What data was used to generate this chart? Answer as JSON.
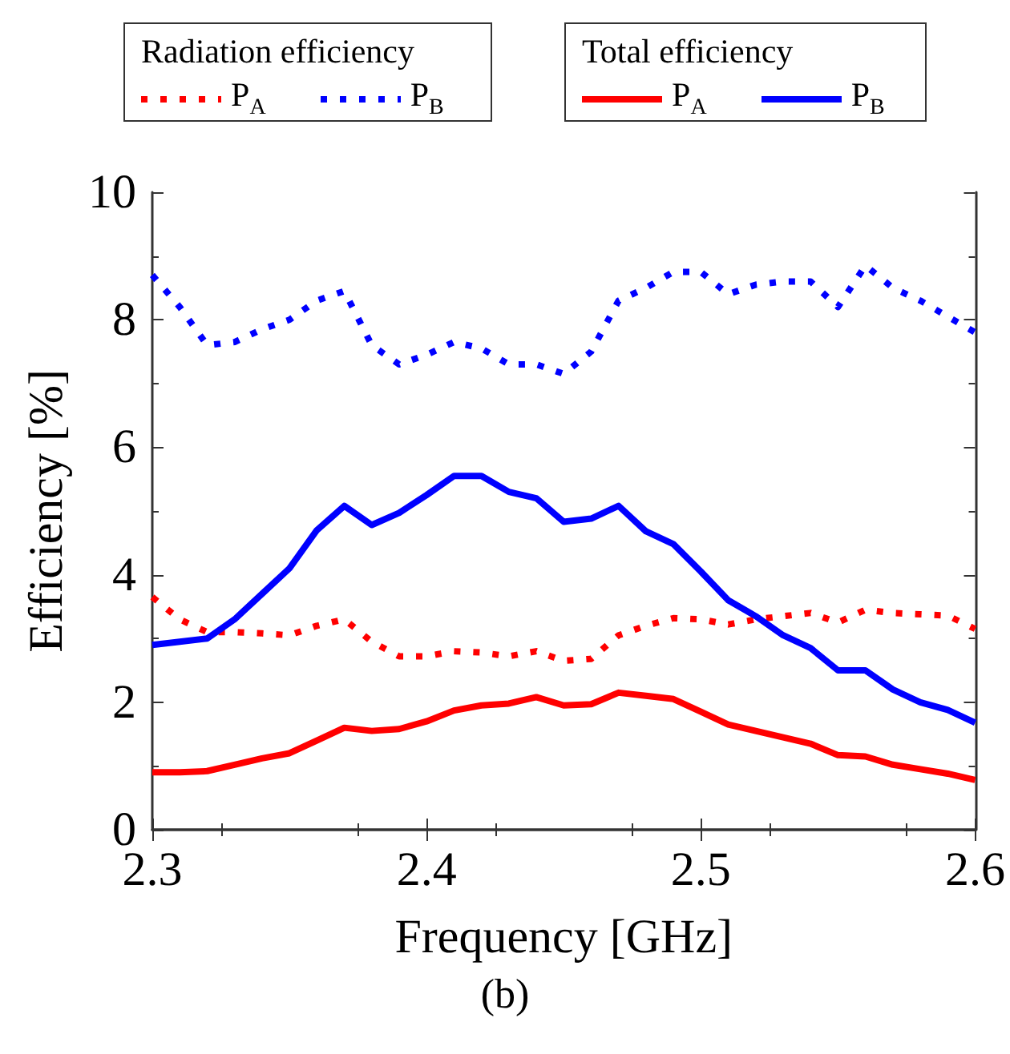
{
  "chart_data": {
    "type": "line",
    "xlabel": "Frequency [GHz]",
    "ylabel": "Efficiency [%]",
    "annotations": [
      "Radiation efficiency",
      "Total efficiency",
      "(b)"
    ],
    "x": [
      2.3,
      2.31,
      2.32,
      2.33,
      2.34,
      2.35,
      2.36,
      2.37,
      2.38,
      2.39,
      2.4,
      2.41,
      2.42,
      2.43,
      2.44,
      2.45,
      2.46,
      2.47,
      2.48,
      2.49,
      2.5,
      2.51,
      2.52,
      2.53,
      2.54,
      2.55,
      2.56,
      2.57,
      2.58,
      2.59,
      2.6
    ],
    "series": [
      {
        "name": "P$_{A}$",
        "color": "#ff0000",
        "line_style": "dashed",
        "values": [
          3.65,
          3.3,
          3.1,
          3.1,
          3.08,
          3.05,
          3.2,
          3.3,
          2.95,
          2.72,
          2.72,
          2.8,
          2.78,
          2.72,
          2.8,
          2.65,
          2.68,
          3.05,
          3.2,
          3.32,
          3.3,
          3.22,
          3.3,
          3.35,
          3.4,
          3.25,
          3.45,
          3.4,
          3.38,
          3.36,
          3.15
        ]
      },
      {
        "name": "P$_{B}$",
        "color": "#0000ff",
        "line_style": "dashed",
        "values": [
          8.7,
          8.2,
          7.6,
          7.65,
          7.85,
          8.0,
          8.3,
          8.45,
          7.6,
          7.3,
          7.45,
          7.65,
          7.55,
          7.3,
          7.3,
          7.15,
          7.5,
          8.3,
          8.5,
          8.75,
          8.75,
          8.4,
          8.55,
          8.6,
          8.6,
          8.2,
          8.85,
          8.5,
          8.3,
          8.05,
          7.8
        ]
      },
      {
        "name": "P$_{A}$",
        "color": "#ff0000",
        "line_style": "solid",
        "values": [
          0.9,
          0.9,
          0.92,
          1.02,
          1.12,
          1.2,
          1.4,
          1.6,
          1.55,
          1.58,
          1.7,
          1.87,
          1.95,
          1.98,
          2.08,
          1.95,
          1.97,
          2.15,
          2.1,
          2.05,
          1.85,
          1.65,
          1.55,
          1.45,
          1.35,
          1.17,
          1.15,
          1.02,
          0.95,
          0.88,
          0.78
        ]
      },
      {
        "name": "P$_{B}$",
        "color": "#0000ff",
        "line_style": "solid",
        "values": [
          2.9,
          2.95,
          3.0,
          3.3,
          3.7,
          4.1,
          4.7,
          5.08,
          4.78,
          4.97,
          5.25,
          5.55,
          5.55,
          5.3,
          5.2,
          4.83,
          4.88,
          5.08,
          4.68,
          4.48,
          4.05,
          3.6,
          3.35,
          3.05,
          2.85,
          2.5,
          2.5,
          2.2,
          2.0,
          1.88,
          1.68
        ]
      }
    ],
    "xlim": [
      2.3,
      2.6
    ],
    "xticks": [
      2.3,
      2.4,
      2.5,
      2.6
    ],
    "ylim": [
      0,
      10
    ],
    "yticks": [
      0,
      2,
      4,
      6,
      8,
      10
    ],
    "grid": false,
    "marker": "none",
    "legend": "top"
  }
}
